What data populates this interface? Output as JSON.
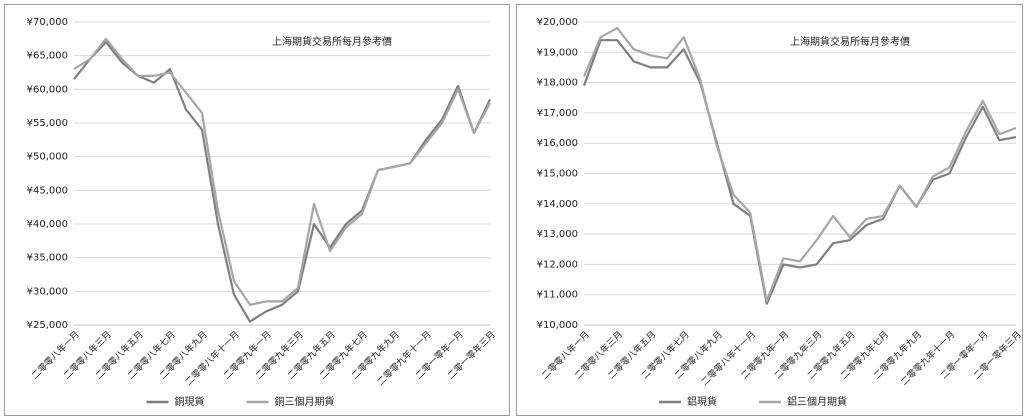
{
  "chart_data": [
    {
      "type": "line",
      "title": "上海期貨交易所每月參考價",
      "categories": [
        "二零零八年一月",
        null,
        "二零零八年三月",
        null,
        "二零零八年五月",
        null,
        "二零零八年七月",
        null,
        "二零零八年九月",
        null,
        "二零零八年十一月",
        null,
        "二零零九年一月",
        null,
        "二零零九年三月",
        null,
        "二零零九年五月",
        null,
        "二零零九年七月",
        null,
        "二零零九年九月",
        null,
        "二零零九年十一月",
        null,
        "二零一零年一月",
        null,
        "二零一零年三月"
      ],
      "series": [
        {
          "name": "銅現貨",
          "color": "#7f7f7f",
          "values": [
            61500,
            64500,
            67000,
            64000,
            62000,
            61000,
            63000,
            57000,
            54000,
            40000,
            29500,
            25500,
            27000,
            28000,
            30000,
            40000,
            36500,
            40000,
            42000,
            48000,
            48500,
            49000,
            52500,
            55500,
            60500,
            53500,
            58500
          ]
        },
        {
          "name": "銅三個月期貨",
          "color": "#a6a6a6",
          "values": [
            63000,
            64500,
            67500,
            64500,
            62000,
            62000,
            62500,
            59500,
            56500,
            42000,
            31500,
            28000,
            28500,
            28500,
            30500,
            43000,
            36000,
            39500,
            41500,
            48000,
            48500,
            49000,
            52000,
            55000,
            60000,
            53500,
            58000
          ]
        }
      ],
      "ylim": [
        25000,
        70000
      ],
      "yticks": [
        {
          "value": 25000,
          "label": "¥25,000"
        },
        {
          "value": 30000,
          "label": "¥30,000"
        },
        {
          "value": 35000,
          "label": "¥35,000"
        },
        {
          "value": 40000,
          "label": "¥40,000"
        },
        {
          "value": 45000,
          "label": "¥45,000"
        },
        {
          "value": 50000,
          "label": "¥50,000"
        },
        {
          "value": 55000,
          "label": "¥55,000"
        },
        {
          "value": 60000,
          "label": "¥60,000"
        },
        {
          "value": 65000,
          "label": "¥65,000"
        },
        {
          "value": 70000,
          "label": "¥70,000"
        }
      ],
      "grid": true,
      "legend": "bottom"
    },
    {
      "type": "line",
      "title": "上海期貨交易所每月參考價",
      "categories": [
        "二零零八年一月",
        null,
        "二零零八年三月",
        null,
        "二零零八年五月",
        null,
        "二零零八年七月",
        null,
        "二零零八年九月",
        null,
        "二零零八年十一月",
        null,
        "二零零九年一月",
        null,
        "二零零九年三月",
        null,
        "二零零九年五月",
        null,
        "二零零九年七月",
        null,
        "二零零九年九月",
        null,
        "二零零九年十一月",
        null,
        "二零一零年一月",
        null,
        "二零一零年三月"
      ],
      "series": [
        {
          "name": "鋁現貨",
          "color": "#7f7f7f",
          "values": [
            17900,
            19400,
            19400,
            18700,
            18500,
            18500,
            19100,
            18000,
            16000,
            14000,
            13600,
            10700,
            12000,
            11900,
            12000,
            12700,
            12800,
            13300,
            13500,
            14600,
            13900,
            14800,
            15000,
            16200,
            17200,
            16100,
            16200
          ]
        },
        {
          "name": "鋁三個月期貨",
          "color": "#a6a6a6",
          "values": [
            18200,
            19500,
            19800,
            19100,
            18900,
            18800,
            19500,
            18100,
            15900,
            14300,
            13700,
            10800,
            12200,
            12100,
            12800,
            13600,
            12900,
            13500,
            13600,
            14600,
            13900,
            14900,
            15200,
            16400,
            17400,
            16300,
            16500
          ]
        }
      ],
      "ylim": [
        10000,
        20000
      ],
      "yticks": [
        {
          "value": 10000,
          "label": "¥10,000"
        },
        {
          "value": 11000,
          "label": "¥11,000"
        },
        {
          "value": 12000,
          "label": "¥12,000"
        },
        {
          "value": 13000,
          "label": "¥13,000"
        },
        {
          "value": 14000,
          "label": "¥14,000"
        },
        {
          "value": 15000,
          "label": "¥15,000"
        },
        {
          "value": 16000,
          "label": "¥16,000"
        },
        {
          "value": 17000,
          "label": "¥17,000"
        },
        {
          "value": 18000,
          "label": "¥18,000"
        },
        {
          "value": 19000,
          "label": "¥19,000"
        },
        {
          "value": 20000,
          "label": "¥20,000"
        }
      ],
      "grid": true,
      "legend": "bottom"
    }
  ]
}
